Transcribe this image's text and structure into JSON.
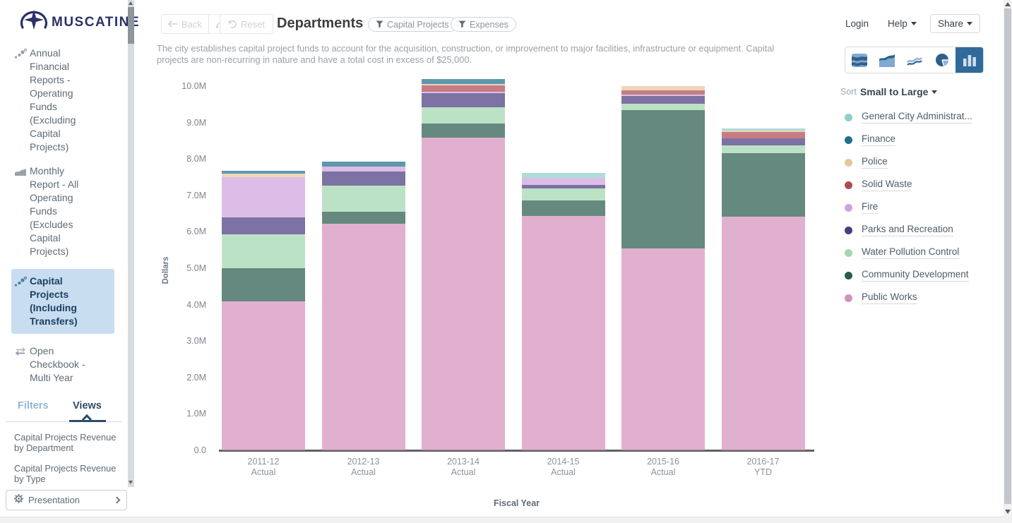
{
  "sidebar": {
    "logo_text": "MUSCATINE",
    "nav": [
      {
        "label": "Annual Financial Reports - Operating Funds (Excluding Capital Projects)",
        "icon": "scatter-dots-icon",
        "selected": false
      },
      {
        "label": "Monthly Report - All Operating Funds (Excludes Capital Projects)",
        "icon": "area-chart-icon",
        "selected": false
      },
      {
        "label": "Capital Projects (Including Transfers)",
        "icon": "scatter-dots-icon",
        "selected": true
      },
      {
        "label": "Open Checkbook - Multi Year",
        "icon": "swap-arrows-icon",
        "selected": false
      }
    ],
    "tabs": {
      "filters": "Filters",
      "views": "Views",
      "active": "Views"
    },
    "views": [
      "Capital Projects Revenue by Department",
      "Capital Projects Revenue by Type"
    ],
    "presentation_label": "Presentation"
  },
  "topbar": {
    "login": "Login",
    "help": "Help",
    "share": "Share"
  },
  "toolbar": {
    "back_label": "Back",
    "reset_label": "Reset",
    "title": "Departments",
    "filter_chips": [
      "Capital Projects",
      "Expenses"
    ]
  },
  "description": "The city establishes capital project funds to account for the acquisition, construction, or improvement to major facilities, infrastructure or equipment. Capital projects are non-recurring in nature and have a total cost in excess of $25,000.",
  "chart_controls": {
    "sort_label": "Sort",
    "sort_value": "Small to Large",
    "chart_types": [
      "stacked-area-percent",
      "stacked-area",
      "line",
      "pie",
      "bar"
    ],
    "selected_chart_type": "bar"
  },
  "chart_data": {
    "type": "bar",
    "stacked": true,
    "unit": "USD millions",
    "xlabel": "Fiscal Year",
    "ylabel": "Dollars",
    "ylim": [
      0,
      10000000
    ],
    "ytick_labels": [
      "0.0",
      "1.0M",
      "2.0M",
      "3.0M",
      "4.0M",
      "5.0M",
      "6.0M",
      "7.0M",
      "8.0M",
      "9.0M",
      "10.0M"
    ],
    "categories": [
      {
        "year": "2011-12",
        "period": "Actual"
      },
      {
        "year": "2012-13",
        "period": "Actual"
      },
      {
        "year": "2013-14",
        "period": "Actual"
      },
      {
        "year": "2014-15",
        "period": "Actual"
      },
      {
        "year": "2015-16",
        "period": "Actual"
      },
      {
        "year": "2016-17",
        "period": "YTD"
      }
    ],
    "legend_position": "right",
    "grid": false,
    "series": [
      {
        "label": "General City Administrat...",
        "color": "#8ecfcb",
        "values": [
          0,
          0,
          0,
          0.13,
          0,
          0.06
        ]
      },
      {
        "label": "Finance",
        "color": "#20708f",
        "values": [
          0.08,
          0.13,
          0.13,
          0,
          0,
          0
        ]
      },
      {
        "label": "Police",
        "color": "#e4c89c",
        "values": [
          0.09,
          0,
          0.04,
          0,
          0.11,
          0.04
        ]
      },
      {
        "label": "Solid Waste",
        "color": "#b04a52",
        "values": [
          0,
          0,
          0.17,
          0,
          0.13,
          0.17
        ]
      },
      {
        "label": "Fire",
        "color": "#cfa3de",
        "values": [
          1.12,
          0.14,
          0.04,
          0.19,
          0.04,
          0
        ]
      },
      {
        "label": "Parks and Recreation",
        "color": "#4a3c80",
        "values": [
          0.46,
          0.39,
          0.39,
          0.1,
          0.21,
          0.19
        ]
      },
      {
        "label": "Water Pollution Control",
        "color": "#a2d7af",
        "values": [
          0.93,
          0.72,
          0.45,
          0.33,
          0.17,
          0.23
        ]
      },
      {
        "label": "Community Development",
        "color": "#2a5b4e",
        "values": [
          0.91,
          0.33,
          0.39,
          0.43,
          3.8,
          1.74
        ]
      },
      {
        "label": "Public Works",
        "color": "#d592bd",
        "values": [
          4.09,
          6.22,
          8.58,
          6.43,
          5.54,
          6.41
        ]
      }
    ]
  },
  "colors": {
    "accent_blue": "#2f6a9b",
    "selected_nav_bg": "#c8ddf0",
    "logo_navy": "#2b3168",
    "icon_blue_dark": "#2e5f8e",
    "icon_blue_light": "#7fa9d1"
  }
}
